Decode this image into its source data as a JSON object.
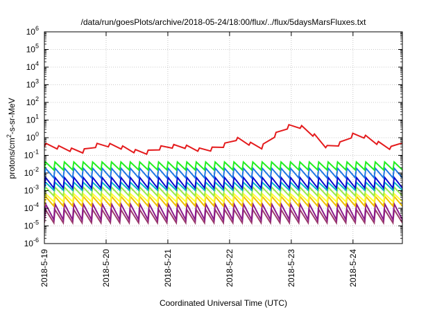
{
  "chart_data": {
    "type": "line",
    "title": "/data/run/goesPlots/archive/2018-05-24/18:00/flux/../flux/5daysMarsFluxes.txt",
    "xlabel": "Coordinated Universal Time (UTC)",
    "ylabel_main": "protons/cm",
    "ylabel_sup": "2",
    "ylabel_rest": "-s-sr-MeV",
    "y_scale": "log",
    "ylim_exp": [
      -6,
      6
    ],
    "y_ticks": [
      {
        "base": "10",
        "exp": "-6",
        "value": -6
      },
      {
        "base": "10",
        "exp": "-5",
        "value": -5
      },
      {
        "base": "10",
        "exp": "-4",
        "value": -4
      },
      {
        "base": "10",
        "exp": "-3",
        "value": -3
      },
      {
        "base": "10",
        "exp": "-2",
        "value": -2
      },
      {
        "base": "10",
        "exp": "-1",
        "value": -1
      },
      {
        "base": "10",
        "exp": "0",
        "value": 0
      },
      {
        "base": "10",
        "exp": "1",
        "value": 1
      },
      {
        "base": "10",
        "exp": "2",
        "value": 2
      },
      {
        "base": "10",
        "exp": "3",
        "value": 3
      },
      {
        "base": "10",
        "exp": "4",
        "value": 4
      },
      {
        "base": "10",
        "exp": "5",
        "value": 5
      },
      {
        "base": "10",
        "exp": "6",
        "value": 6
      }
    ],
    "x_range_days": [
      0,
      5.8
    ],
    "x_ticks": [
      {
        "label": "2018-5-19",
        "day": 0
      },
      {
        "label": "2018-5-20",
        "day": 1
      },
      {
        "label": "2018-5-21",
        "day": 2
      },
      {
        "label": "2018-5-22",
        "day": 3
      },
      {
        "label": "2018-5-23",
        "day": 4
      },
      {
        "label": "2018-5-24",
        "day": 5
      }
    ],
    "grid": true,
    "legend": "none",
    "series": [
      {
        "color": "#e41a1c",
        "anchors": [
          [
            0,
            -0.4
          ],
          [
            0.3,
            -0.6
          ],
          [
            0.6,
            -0.8
          ],
          [
            0.9,
            -0.35
          ],
          [
            1.2,
            -0.5
          ],
          [
            1.6,
            -0.9
          ],
          [
            1.9,
            -0.55
          ],
          [
            2.2,
            -0.45
          ],
          [
            2.6,
            -0.75
          ],
          [
            2.9,
            -0.45
          ],
          [
            3.1,
            -0.05
          ],
          [
            3.3,
            -0.3
          ],
          [
            3.5,
            -0.6
          ],
          [
            3.8,
            0.35
          ],
          [
            4.05,
            0.8
          ],
          [
            4.3,
            0.35
          ],
          [
            4.6,
            -0.6
          ],
          [
            4.85,
            -0.25
          ],
          [
            5.05,
            0.3
          ],
          [
            5.4,
            -0.3
          ],
          [
            5.7,
            -0.7
          ],
          [
            5.8,
            -0.2
          ]
        ],
        "saw": {
          "count": 28,
          "depth": 0.2
        }
      },
      {
        "color": "#22ee22",
        "anchors": [
          [
            0,
            -1.6
          ],
          [
            5.8,
            -1.6
          ]
        ],
        "saw": {
          "count": 38,
          "depth": 0.45
        }
      },
      {
        "color": "#1f77e4",
        "anchors": [
          [
            0,
            -2.0
          ],
          [
            5.8,
            -2.0
          ]
        ],
        "saw": {
          "count": 38,
          "depth": 0.55
        }
      },
      {
        "color": "#0b0bd0",
        "anchors": [
          [
            0,
            -2.55
          ],
          [
            5.8,
            -2.55
          ]
        ],
        "saw": {
          "count": 38,
          "depth": 0.6
        }
      },
      {
        "color": "#00b8c8",
        "anchors": [
          [
            0,
            -2.75
          ],
          [
            5.8,
            -2.75
          ]
        ],
        "saw": {
          "count": 38,
          "depth": 0.45
        }
      },
      {
        "color": "#9ae84a",
        "anchors": [
          [
            0,
            -3.05
          ],
          [
            5.8,
            -3.05
          ]
        ],
        "saw": {
          "count": 38,
          "depth": 0.5
        }
      },
      {
        "color": "#ffff33",
        "anchors": [
          [
            0,
            -3.4
          ],
          [
            5.8,
            -3.4
          ]
        ],
        "saw": {
          "count": 38,
          "depth": 0.45
        }
      },
      {
        "color": "#f0c000",
        "anchors": [
          [
            0,
            -3.6
          ],
          [
            5.8,
            -3.6
          ]
        ],
        "saw": {
          "count": 38,
          "depth": 0.55
        }
      },
      {
        "color": "#8b1a8b",
        "anchors": [
          [
            0,
            -4.2
          ],
          [
            5.8,
            -4.2
          ]
        ],
        "saw": {
          "count": 38,
          "depth": 0.9
        }
      },
      {
        "color": "#9a3a6a",
        "anchors": [
          [
            0,
            -4.45
          ],
          [
            5.8,
            -4.45
          ]
        ],
        "saw": {
          "count": 38,
          "depth": 0.75
        }
      }
    ]
  }
}
